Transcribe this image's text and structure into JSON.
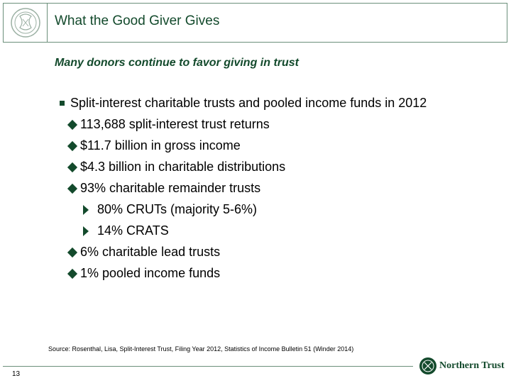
{
  "header": {
    "title": "What the Good Giver Gives"
  },
  "subtitle": "Many donors continue to favor giving in trust",
  "bullets": {
    "main": "Split-interest charitable trusts and pooled income funds in 2012",
    "l1": "113,688 split-interest trust returns",
    "l2": "$11.7 billion in gross income",
    "l3": "$4.3 billion in charitable distributions",
    "l4": "93% charitable remainder trusts",
    "l4a": "80% CRUTs (majority 5-6%)",
    "l4b": "14% CRATS",
    "l5": "6% charitable lead trusts",
    "l6": "1% pooled income funds"
  },
  "source": "Source: Rosenthal, Lisa, Split-Interest Trust, Filing Year 2012, Statistics of Income Bulletin 51 (Winder 2014)",
  "footer": {
    "page_number": "13",
    "brand": "Northern Trust"
  },
  "colors": {
    "brand_green": "#134a2c",
    "border": "#6b8f7a"
  }
}
